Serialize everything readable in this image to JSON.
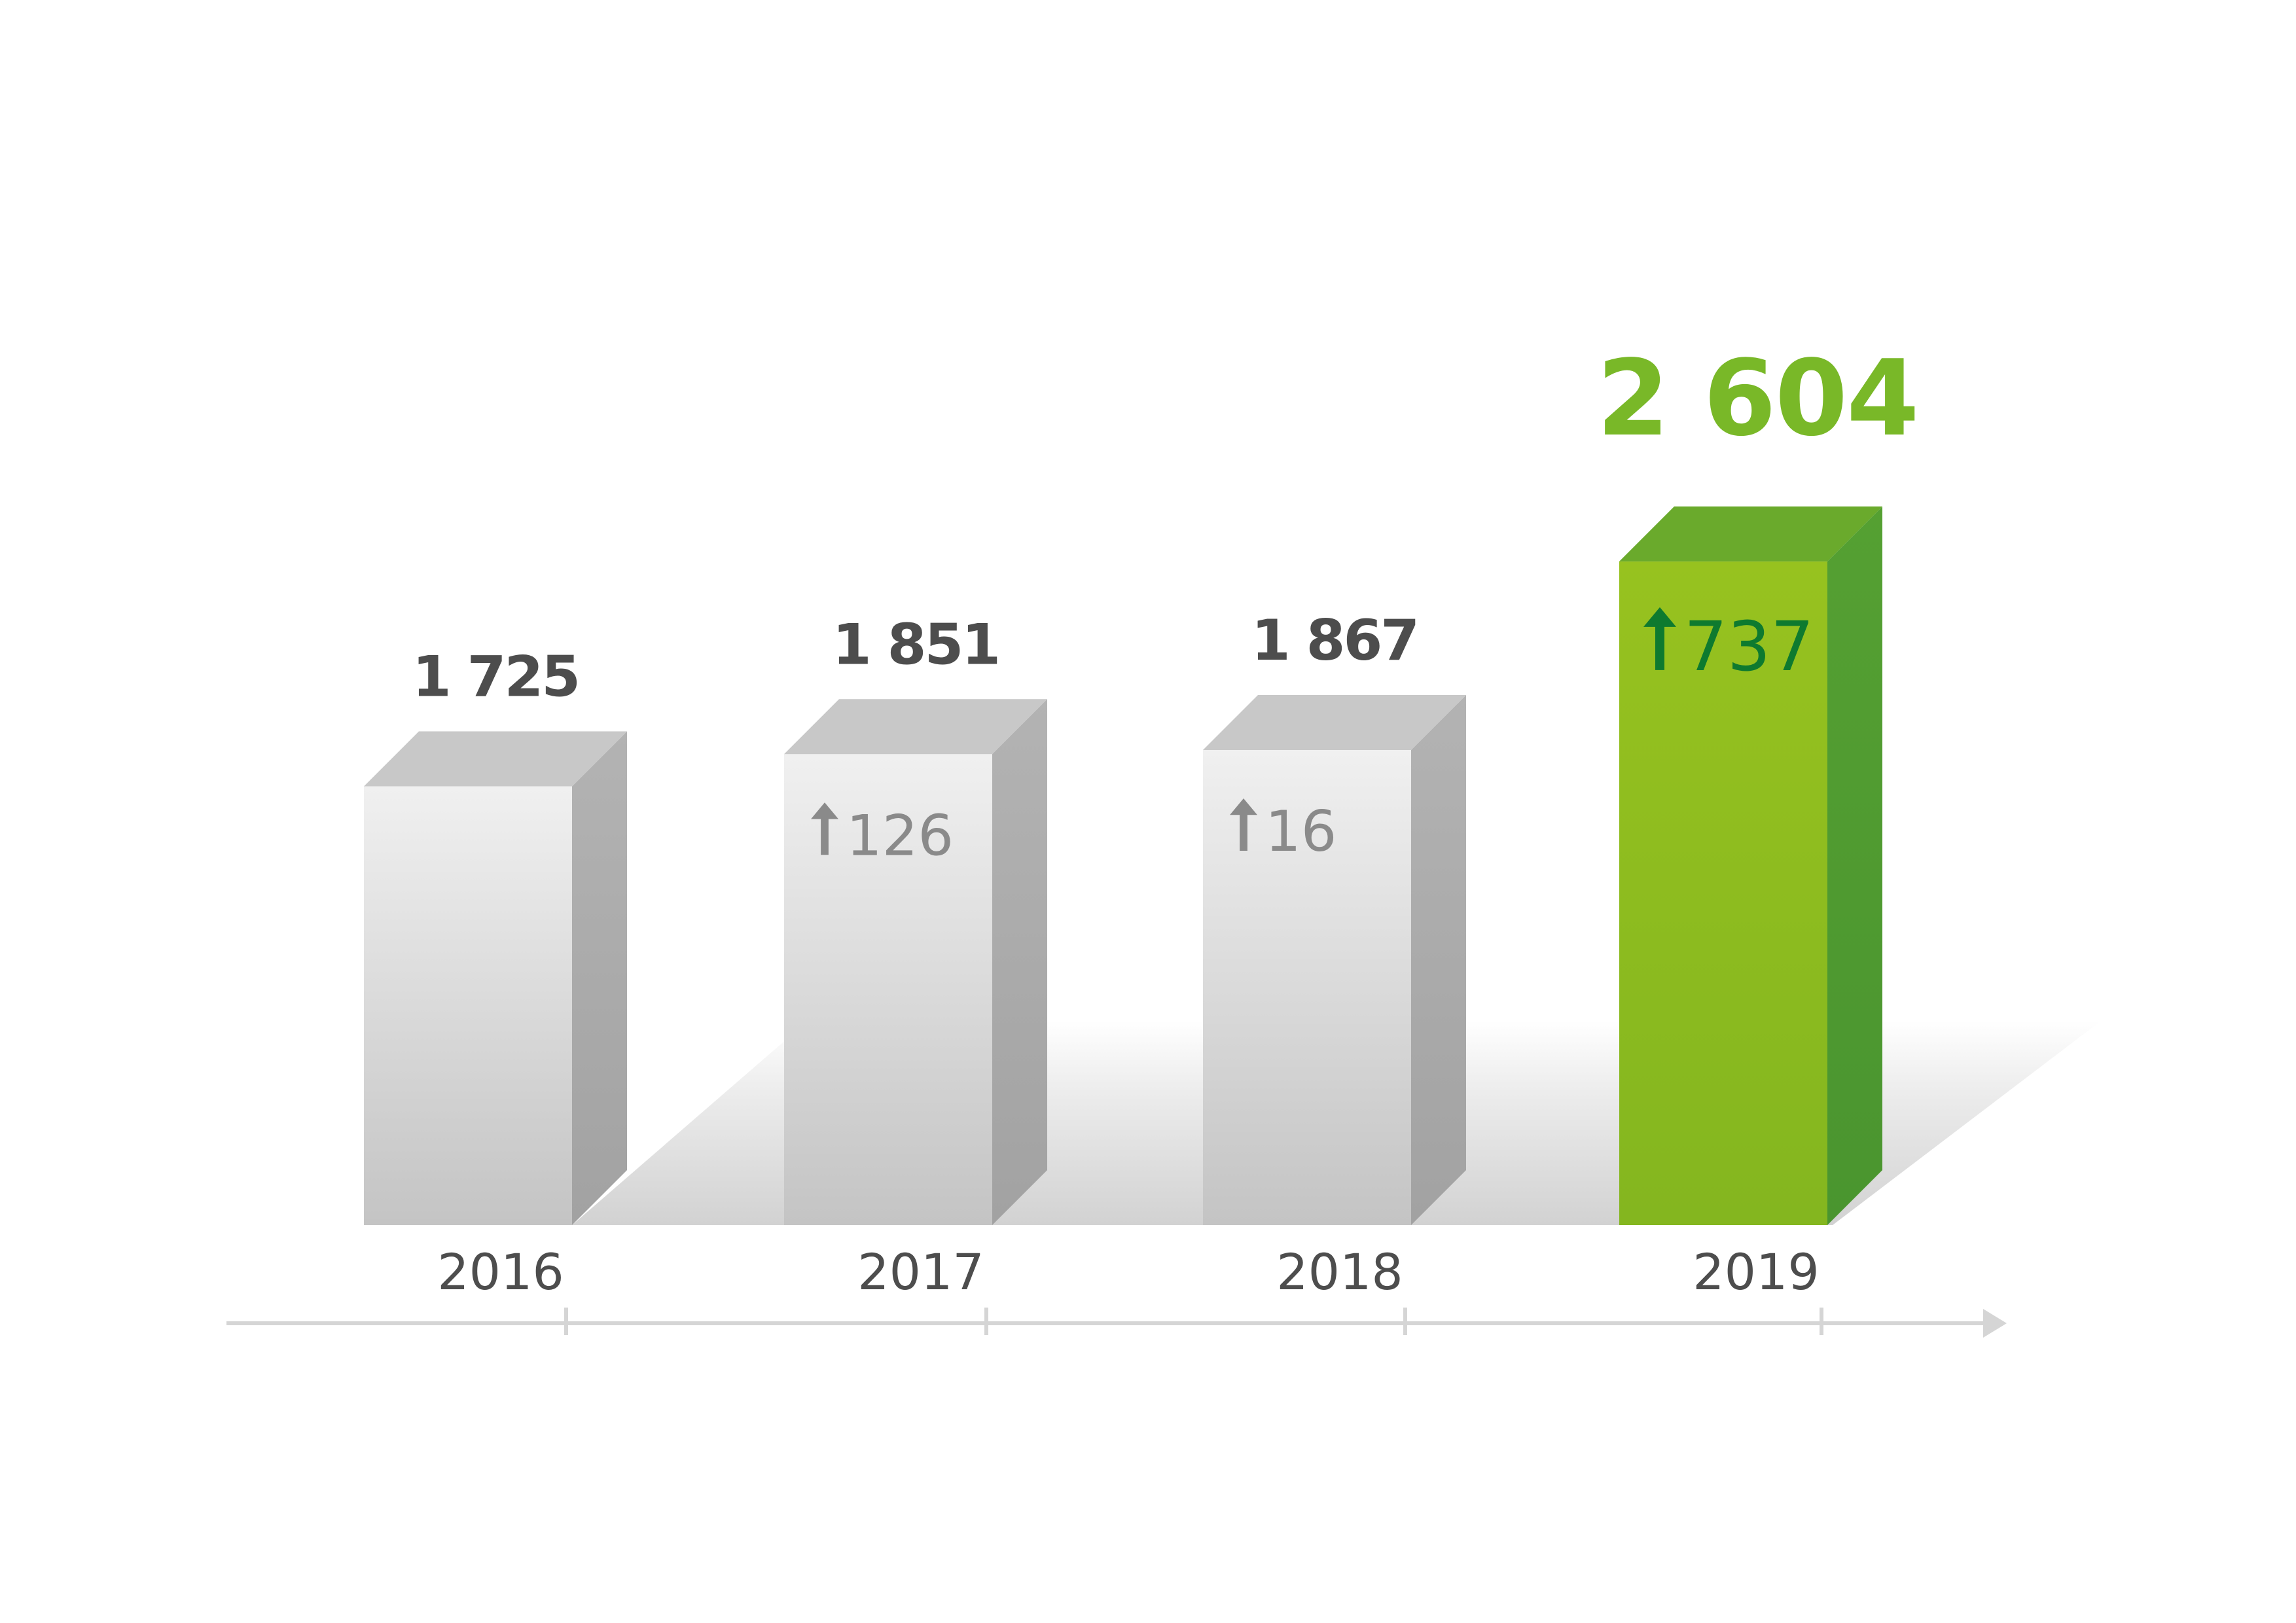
{
  "chart_data": {
    "type": "bar",
    "categories": [
      "2016",
      "2017",
      "2018",
      "2019"
    ],
    "values": [
      1725,
      1851,
      1867,
      2604
    ],
    "value_labels": [
      "1 725",
      "1 851",
      "1 867",
      "2 604"
    ],
    "changes": [
      null,
      126,
      16,
      737
    ],
    "change_labels": [
      "",
      "126",
      "16",
      "737"
    ],
    "highlight_index": 3,
    "title": "",
    "xlabel": "",
    "ylabel": "",
    "grid": false,
    "legend": "none"
  },
  "colors": {
    "gray_front_top": "#f0f0f0",
    "gray_front_bottom": "#c4c4c4",
    "gray_side": "#a9a9a9",
    "gray_top": "#c8c8c8",
    "green_front_top": "#97c21f",
    "green_front_bottom": "#84b61f",
    "green_side": "#4f9a31",
    "green_top": "#6aaa2c",
    "green_value_text": "#79b828",
    "green_arrow": "#0e7a2f",
    "gray_value_text": "#4d4d4d",
    "gray_delta_text": "#8a8a8a",
    "year_text": "#4d4d4d",
    "axis": "#d5d5d5"
  }
}
